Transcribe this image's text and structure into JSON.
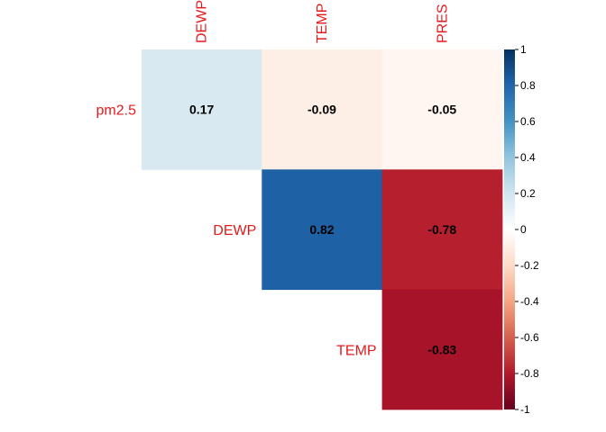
{
  "chart_data": {
    "type": "heatmap",
    "title": "",
    "layout": "upper-triangle correlation matrix",
    "row_labels": [
      "pm2.5",
      "DEWP",
      "TEMP"
    ],
    "column_labels": [
      "DEWP",
      "TEMP",
      "PRES"
    ],
    "cells": [
      {
        "row": "pm2.5",
        "col": "DEWP",
        "value": 0.17,
        "label": "0.17"
      },
      {
        "row": "pm2.5",
        "col": "TEMP",
        "value": -0.09,
        "label": "-0.09"
      },
      {
        "row": "pm2.5",
        "col": "PRES",
        "value": -0.05,
        "label": "-0.05"
      },
      {
        "row": "DEWP",
        "col": "TEMP",
        "value": 0.82,
        "label": "0.82"
      },
      {
        "row": "DEWP",
        "col": "PRES",
        "value": -0.78,
        "label": "-0.78"
      },
      {
        "row": "TEMP",
        "col": "PRES",
        "value": -0.83,
        "label": "-0.83"
      }
    ],
    "color_scale": {
      "range": [
        -1,
        1
      ],
      "ticks": [
        "1",
        "0.8",
        "0.6",
        "0.4",
        "0.2",
        "0",
        "-0.2",
        "-0.4",
        "-0.6",
        "-0.8",
        "-1"
      ],
      "colors": [
        "#67001f",
        "#b2182b",
        "#d6604d",
        "#f4a582",
        "#fddbc7",
        "#ffffff",
        "#d1e5f0",
        "#92c5de",
        "#4393c3",
        "#2166ac",
        "#053061"
      ]
    },
    "label_color": "#e41a1c",
    "value_text_color": "#000000",
    "grid": false,
    "legend": "right"
  }
}
